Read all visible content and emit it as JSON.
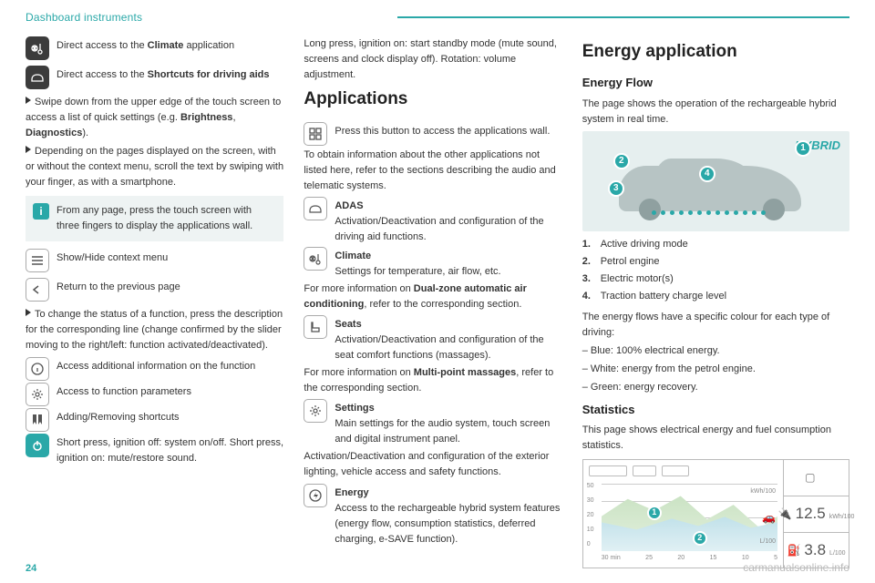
{
  "header": {
    "title": "Dashboard instruments"
  },
  "page_number": "24",
  "watermark": "carmanualsonline.info",
  "col1": {
    "climate_row": "Direct access to the <b>Climate</b> application",
    "shortcuts_row": "Direct access to the <b>Shortcuts for driving aids</b>",
    "swipe_para": "Swipe down from the upper edge of the touch screen to access a list of quick settings (e.g. <b>Brightness</b>, <b>Diagnostics</b>).",
    "scroll_para": "Depending on the pages displayed on the screen, with or without the context menu, scroll the text by swiping with your finger, as with a smartphone.",
    "info_box": "From any page, press the touch screen with three fingers to display the applications wall.",
    "menu_row": "Show/Hide context menu",
    "back_row": "Return to the previous page",
    "change_para": "To change the status of a function, press the description for the corresponding line (change confirmed by the slider moving to the right/left: function activated/deactivated).",
    "info_row": "Access additional information on the function",
    "gear_row": "Access to function parameters",
    "bookmark_row": "Adding/Removing shortcuts",
    "power_row": "Short press, ignition off: system on/off. Short press, ignition on: mute/restore sound."
  },
  "col2": {
    "long_press": "Long press, ignition on: start standby mode (mute sound, screens and clock display off). Rotation: volume adjustment.",
    "h_apps": "Applications",
    "apps_btn": "Press this button to access the applications wall.",
    "apps_para": "To obtain information about the other applications not listed here, refer to the sections describing the audio and telematic systems.",
    "adas_t": "ADAS",
    "adas_b": "Activation/Deactivation and configuration of the driving aid functions.",
    "climate_t": "Climate",
    "climate_b": "Settings for temperature, air flow, etc.",
    "climate_more": "For more information on <b>Dual-zone automatic air conditioning</b>, refer to the corresponding section.",
    "seats_t": "Seats",
    "seats_b": "Activation/Deactivation and configuration of the seat comfort functions (massages).",
    "seats_more": "For more information on <b>Multi-point massages</b>, refer to the corresponding section.",
    "settings_t": "Settings",
    "settings_b": "Main settings for the audio system, touch screen and digital instrument panel.",
    "settings_more": "Activation/Deactivation and configuration of the exterior lighting, vehicle access and safety functions.",
    "energy_t": "Energy",
    "energy_b": "Access to the rechargeable hybrid system features (energy flow, consumption statistics, deferred charging, e-SAVE function)."
  },
  "col3": {
    "h_energy": "Energy application",
    "h_flow": "Energy Flow",
    "flow_para": "The page shows the operation of the rechargeable hybrid system in real time.",
    "hybrid_label": "HYBRID",
    "list": [
      "Active driving mode",
      "Petrol engine",
      "Electric motor(s)",
      "Traction battery charge level"
    ],
    "flow_colors_intro": "The energy flows have a specific colour for each type of driving:",
    "blue": "Blue: 100% electrical energy.",
    "white": "White: energy from the petrol engine.",
    "green": "Green: energy recovery.",
    "h_stats": "Statistics",
    "stats_para": "This page shows electrical energy and fuel consumption statistics.",
    "chart": {
      "y_labels": [
        "50",
        "30",
        "20",
        "10",
        "0"
      ],
      "x_labels": [
        "30 min",
        "25",
        "20",
        "15",
        "10",
        "5"
      ],
      "unit_top": "kWh/100",
      "unit_bot": "L/100",
      "value1": "12.5",
      "sub1": "kWh/100",
      "value2": "3.8",
      "sub2": "L/100"
    }
  }
}
